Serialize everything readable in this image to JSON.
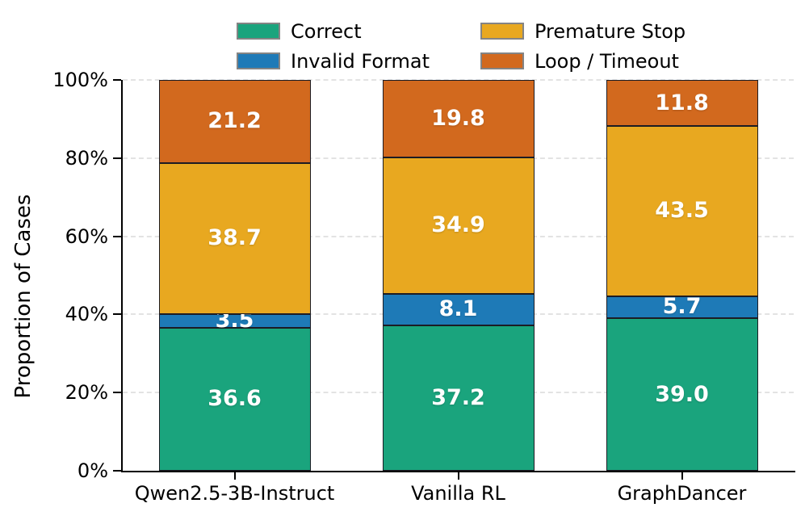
{
  "chart_data": {
    "type": "bar",
    "stacked": true,
    "orientation": "vertical",
    "categories": [
      "Qwen2.5-3B-Instruct",
      "Vanilla RL",
      "GraphDancer"
    ],
    "series": [
      {
        "name": "Correct",
        "color": "#1aa47d",
        "values": [
          36.6,
          37.2,
          39.0
        ]
      },
      {
        "name": "Invalid Format",
        "color": "#1e7ab7",
        "values": [
          3.5,
          8.1,
          5.7
        ]
      },
      {
        "name": "Premature Stop",
        "color": "#e8a820",
        "values": [
          38.7,
          34.9,
          43.5
        ]
      },
      {
        "name": "Loop / Timeout",
        "color": "#d2691e",
        "values": [
          21.2,
          19.8,
          11.8
        ]
      }
    ],
    "title": "",
    "xlabel": "",
    "ylabel": "Proportion of Cases",
    "ylim": [
      0,
      100
    ],
    "yticks": [
      0,
      20,
      40,
      60,
      80,
      100
    ],
    "ytick_suffix": "%",
    "grid": "horizontal-dashed",
    "legend_position": "top-center",
    "legend_columns": 2,
    "value_label_decimals": 1
  },
  "style": {
    "bar_edge_color": "#1c1c24",
    "gridline_color": "#e3e3e3",
    "axis_color": "#000000",
    "value_label_color": "#ffffff",
    "legend_swatch_border": "#848484",
    "background": "#ffffff"
  }
}
